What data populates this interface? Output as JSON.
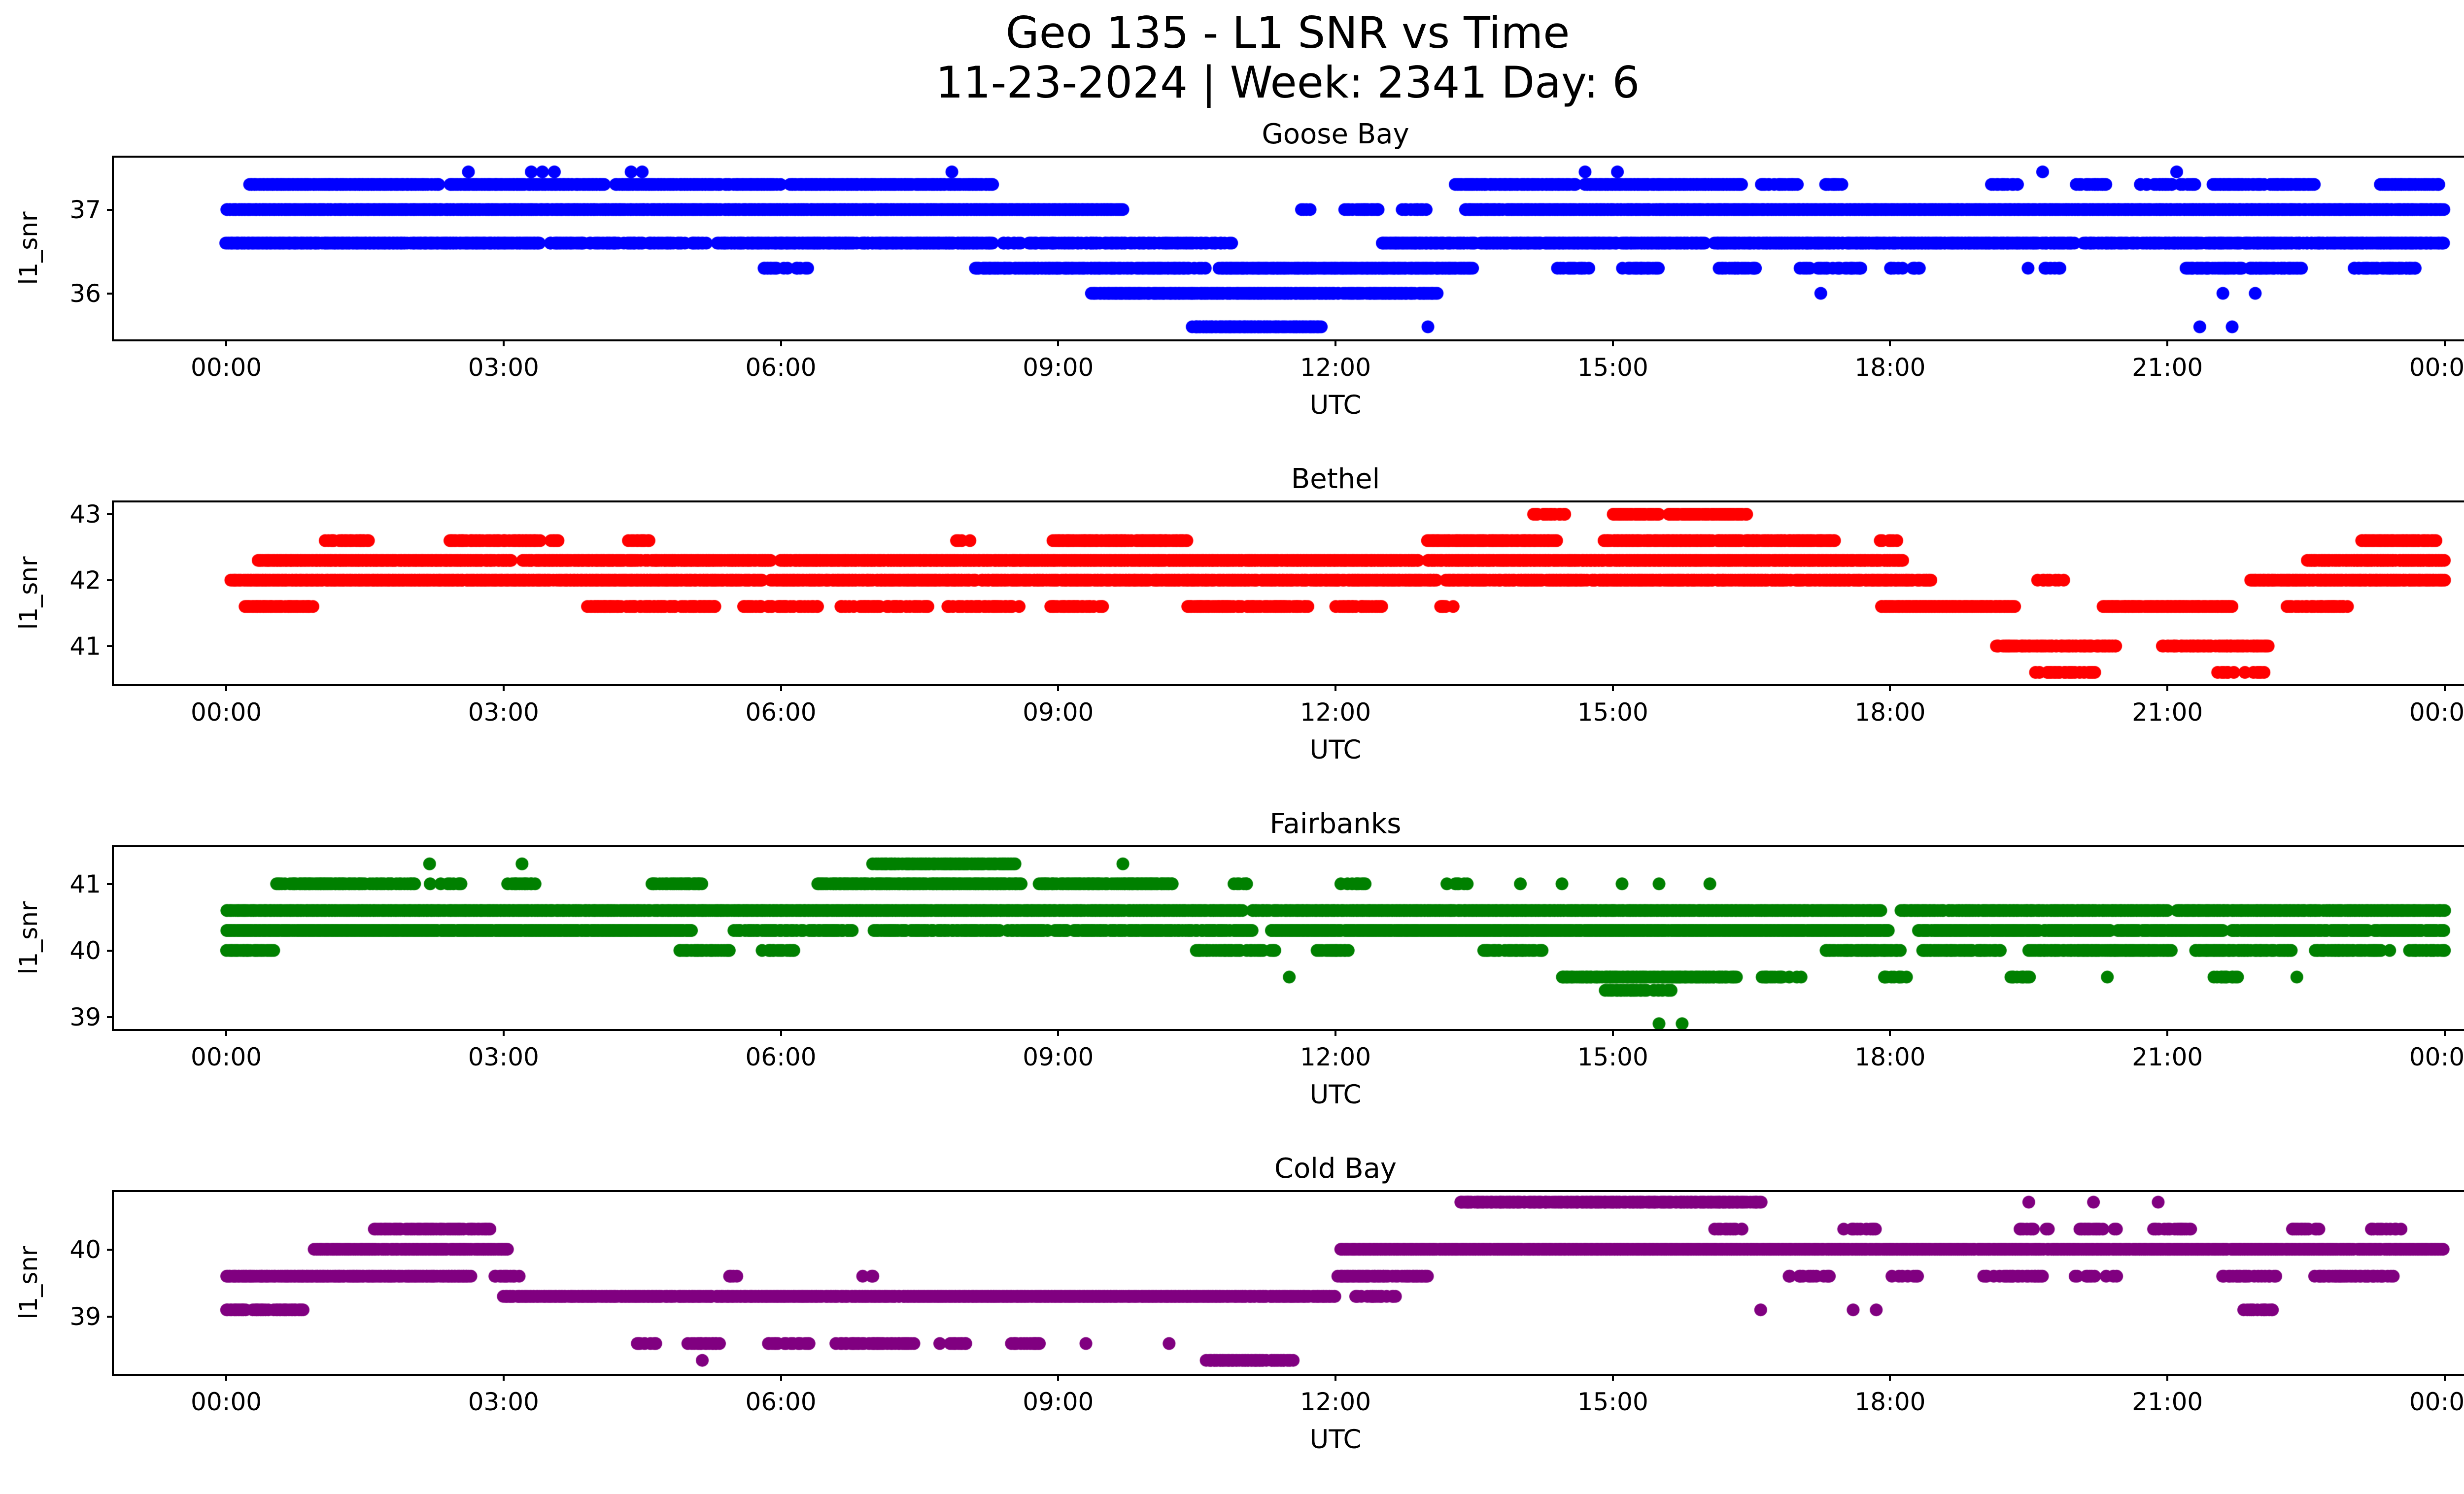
{
  "figure": {
    "title": "Geo 135 - L1 SNR vs Time",
    "subtitle": "11-23-2024 | Week: 2341 Day: 6"
  },
  "chart_data": [
    {
      "type": "scatter",
      "title": "Goose Bay",
      "color": "#0000ff",
      "ylabel": "l1_snr",
      "xlabel": "UTC",
      "x_ticks": [
        "00:00",
        "03:00",
        "06:00",
        "09:00",
        "12:00",
        "15:00",
        "18:00",
        "21:00",
        "00:00"
      ],
      "x_hours": [
        0,
        24
      ],
      "y_ticks": [
        36,
        37
      ],
      "ylim": [
        35.45,
        37.62
      ],
      "segments": [
        [
          2.62,
          2.62,
          37.45,
          1
        ],
        [
          3.3,
          3.3,
          37.45,
          1
        ],
        [
          3.42,
          3.42,
          37.45,
          1
        ],
        [
          3.55,
          3.55,
          37.45,
          1
        ],
        [
          4.38,
          4.38,
          37.45,
          1
        ],
        [
          4.5,
          4.5,
          37.45,
          1
        ],
        [
          7.85,
          7.85,
          37.45,
          1
        ],
        [
          14.7,
          14.7,
          37.45,
          1
        ],
        [
          15.05,
          15.05,
          37.45,
          1
        ],
        [
          19.65,
          19.65,
          37.45,
          1
        ],
        [
          21.1,
          21.1,
          37.45,
          1
        ],
        [
          0.25,
          2.3,
          37.3,
          0.95
        ],
        [
          2.4,
          4.1,
          37.3,
          0.9
        ],
        [
          4.2,
          6.0,
          37.3,
          0.85
        ],
        [
          6.1,
          8.3,
          37.3,
          0.9
        ],
        [
          13.3,
          14.6,
          37.3,
          0.9
        ],
        [
          14.7,
          16.4,
          37.3,
          0.95
        ],
        [
          16.6,
          17.0,
          37.3,
          0.7
        ],
        [
          17.3,
          17.5,
          37.3,
          0.6
        ],
        [
          19.1,
          19.4,
          37.3,
          0.6
        ],
        [
          20.0,
          20.35,
          37.3,
          0.6
        ],
        [
          20.7,
          21.3,
          37.3,
          0.7
        ],
        [
          21.5,
          22.6,
          37.3,
          0.85
        ],
        [
          23.3,
          23.95,
          37.3,
          0.8
        ],
        [
          0.0,
          9.7,
          37.0,
          0.97
        ],
        [
          11.6,
          11.75,
          37.0,
          0.5
        ],
        [
          12.1,
          12.5,
          37.0,
          0.7
        ],
        [
          12.7,
          13.0,
          37.0,
          0.6
        ],
        [
          13.4,
          24.0,
          37.0,
          0.97
        ],
        [
          0.0,
          3.4,
          36.6,
          0.97
        ],
        [
          3.5,
          5.2,
          36.6,
          0.8
        ],
        [
          5.3,
          8.3,
          36.6,
          0.9
        ],
        [
          8.4,
          10.9,
          36.6,
          0.6
        ],
        [
          12.5,
          16.0,
          36.6,
          0.9
        ],
        [
          16.1,
          20.0,
          36.6,
          0.95
        ],
        [
          20.1,
          24.0,
          36.6,
          0.9
        ],
        [
          5.8,
          6.3,
          36.3,
          0.5
        ],
        [
          8.1,
          10.6,
          36.3,
          0.85
        ],
        [
          10.7,
          13.5,
          36.3,
          0.9
        ],
        [
          14.4,
          14.75,
          36.3,
          0.6
        ],
        [
          15.1,
          15.5,
          36.3,
          0.6
        ],
        [
          16.15,
          16.55,
          36.3,
          0.6
        ],
        [
          17.0,
          17.7,
          36.3,
          0.6
        ],
        [
          18.0,
          18.35,
          36.3,
          0.5
        ],
        [
          19.5,
          19.85,
          36.3,
          0.5
        ],
        [
          21.2,
          22.45,
          36.3,
          0.75
        ],
        [
          23.0,
          23.7,
          36.3,
          0.7
        ],
        [
          9.35,
          13.1,
          36.0,
          0.9
        ],
        [
          17.25,
          17.25,
          36.0,
          1
        ],
        [
          21.6,
          21.6,
          36.0,
          1
        ],
        [
          21.95,
          21.95,
          36.0,
          1
        ],
        [
          10.45,
          11.85,
          35.6,
          0.9
        ],
        [
          13.0,
          13.0,
          35.6,
          1
        ],
        [
          21.35,
          21.35,
          35.6,
          1
        ],
        [
          21.7,
          21.7,
          35.6,
          1
        ]
      ]
    },
    {
      "type": "scatter",
      "title": "Bethel",
      "color": "#ff0000",
      "ylabel": "l1_snr",
      "xlabel": "UTC",
      "x_ticks": [
        "00:00",
        "03:00",
        "06:00",
        "09:00",
        "12:00",
        "15:00",
        "18:00",
        "21:00",
        "00:00"
      ],
      "x_hours": [
        0,
        24
      ],
      "y_ticks": [
        41,
        42,
        43
      ],
      "ylim": [
        40.42,
        43.18
      ],
      "segments": [
        [
          14.15,
          14.5,
          43.0,
          0.7
        ],
        [
          15.0,
          15.5,
          43.0,
          0.85
        ],
        [
          15.6,
          16.45,
          43.0,
          0.9
        ],
        [
          1.05,
          1.55,
          42.6,
          0.7
        ],
        [
          2.4,
          3.4,
          42.6,
          0.8
        ],
        [
          3.45,
          3.6,
          42.6,
          0.5
        ],
        [
          4.35,
          4.6,
          42.6,
          0.6
        ],
        [
          7.9,
          8.05,
          42.6,
          0.5
        ],
        [
          8.95,
          10.4,
          42.6,
          0.9
        ],
        [
          13.0,
          14.4,
          42.6,
          0.9
        ],
        [
          14.9,
          17.4,
          42.6,
          0.92
        ],
        [
          17.9,
          18.1,
          42.6,
          0.5
        ],
        [
          23.1,
          23.9,
          42.6,
          0.8
        ],
        [
          0.35,
          3.1,
          42.3,
          0.95
        ],
        [
          3.2,
          5.9,
          42.3,
          0.9
        ],
        [
          6.0,
          12.9,
          42.3,
          0.96
        ],
        [
          13.0,
          18.15,
          42.3,
          0.96
        ],
        [
          22.5,
          24.0,
          42.3,
          0.9
        ],
        [
          0.05,
          5.8,
          42.0,
          0.95
        ],
        [
          5.9,
          13.1,
          42.0,
          0.9
        ],
        [
          13.2,
          18.45,
          42.0,
          0.9
        ],
        [
          19.6,
          19.9,
          42.0,
          0.5
        ],
        [
          21.9,
          24.0,
          42.0,
          0.92
        ],
        [
          0.2,
          0.95,
          41.6,
          0.8
        ],
        [
          3.9,
          5.3,
          41.6,
          0.75
        ],
        [
          5.6,
          6.4,
          41.6,
          0.6
        ],
        [
          6.6,
          7.6,
          41.6,
          0.6
        ],
        [
          7.8,
          8.6,
          41.6,
          0.6
        ],
        [
          8.9,
          9.5,
          41.6,
          0.6
        ],
        [
          10.4,
          11.7,
          41.6,
          0.7
        ],
        [
          12.0,
          12.5,
          41.6,
          0.6
        ],
        [
          13.05,
          13.3,
          41.6,
          0.5
        ],
        [
          17.9,
          19.35,
          41.6,
          0.9
        ],
        [
          20.3,
          21.7,
          41.6,
          0.9
        ],
        [
          22.3,
          22.95,
          41.6,
          0.7
        ],
        [
          19.15,
          20.45,
          41.0,
          0.9
        ],
        [
          20.95,
          22.1,
          41.0,
          0.9
        ],
        [
          19.55,
          20.25,
          40.6,
          0.5
        ],
        [
          21.5,
          22.05,
          40.6,
          0.5
        ]
      ]
    },
    {
      "type": "scatter",
      "title": "Fairbanks",
      "color": "#008000",
      "ylabel": "l1_snr",
      "xlabel": "UTC",
      "x_ticks": [
        "00:00",
        "03:00",
        "06:00",
        "09:00",
        "12:00",
        "15:00",
        "18:00",
        "21:00",
        "00:00"
      ],
      "x_hours": [
        0,
        24
      ],
      "y_ticks": [
        39,
        40,
        41
      ],
      "ylim": [
        38.82,
        41.55
      ],
      "segments": [
        [
          2.2,
          2.2,
          41.3,
          1
        ],
        [
          3.2,
          3.2,
          41.3,
          1
        ],
        [
          7.0,
          8.55,
          41.3,
          0.9
        ],
        [
          9.7,
          9.7,
          41.3,
          1
        ],
        [
          0.55,
          2.05,
          41.0,
          0.85
        ],
        [
          2.2,
          2.55,
          41.0,
          0.6
        ],
        [
          3.0,
          3.35,
          41.0,
          0.6
        ],
        [
          4.6,
          5.15,
          41.0,
          0.7
        ],
        [
          6.4,
          8.6,
          41.0,
          0.9
        ],
        [
          8.8,
          10.25,
          41.0,
          0.85
        ],
        [
          10.9,
          11.05,
          41.0,
          0.4
        ],
        [
          12.0,
          12.35,
          41.0,
          0.5
        ],
        [
          13.2,
          13.45,
          41.0,
          0.5
        ],
        [
          14.0,
          14.0,
          41.0,
          1
        ],
        [
          14.45,
          14.45,
          41.0,
          1
        ],
        [
          15.1,
          15.1,
          41.0,
          1
        ],
        [
          15.5,
          15.5,
          41.0,
          1
        ],
        [
          16.05,
          16.05,
          41.0,
          1
        ],
        [
          0.0,
          11.0,
          40.6,
          0.95
        ],
        [
          11.1,
          17.9,
          40.6,
          0.95
        ],
        [
          18.1,
          21.0,
          40.6,
          0.9
        ],
        [
          21.1,
          24.0,
          40.6,
          0.93
        ],
        [
          0.0,
          5.05,
          40.3,
          0.95
        ],
        [
          5.5,
          6.8,
          40.3,
          0.6
        ],
        [
          7.0,
          11.1,
          40.3,
          0.7
        ],
        [
          11.3,
          18.0,
          40.3,
          0.95
        ],
        [
          18.3,
          21.6,
          40.3,
          0.9
        ],
        [
          21.7,
          24.0,
          40.3,
          0.9
        ],
        [
          0.0,
          0.55,
          40.0,
          0.8
        ],
        [
          4.9,
          5.45,
          40.0,
          0.7
        ],
        [
          5.8,
          6.15,
          40.0,
          0.6
        ],
        [
          10.5,
          11.35,
          40.0,
          0.7
        ],
        [
          11.8,
          12.15,
          40.0,
          0.6
        ],
        [
          13.6,
          14.25,
          40.0,
          0.6
        ],
        [
          17.3,
          18.15,
          40.0,
          0.7
        ],
        [
          18.35,
          19.2,
          40.0,
          0.7
        ],
        [
          19.5,
          21.05,
          40.0,
          0.8
        ],
        [
          21.3,
          22.35,
          40.0,
          0.75
        ],
        [
          22.6,
          23.4,
          40.0,
          0.7
        ],
        [
          23.6,
          24.0,
          40.0,
          0.7
        ],
        [
          11.5,
          11.5,
          39.6,
          1
        ],
        [
          14.45,
          16.35,
          39.6,
          0.9
        ],
        [
          16.6,
          17.05,
          39.6,
          0.6
        ],
        [
          17.9,
          18.2,
          39.6,
          0.5
        ],
        [
          19.3,
          19.55,
          39.6,
          0.5
        ],
        [
          20.35,
          20.35,
          39.6,
          1
        ],
        [
          21.5,
          21.85,
          39.6,
          0.5
        ],
        [
          22.4,
          22.4,
          39.6,
          1
        ],
        [
          14.9,
          15.7,
          39.4,
          0.5
        ],
        [
          15.5,
          15.5,
          38.9,
          1
        ],
        [
          15.75,
          15.75,
          38.9,
          1
        ]
      ]
    },
    {
      "type": "scatter",
      "title": "Cold Bay",
      "color": "#800080",
      "ylabel": "l1_snr",
      "xlabel": "UTC",
      "x_ticks": [
        "00:00",
        "03:00",
        "06:00",
        "09:00",
        "12:00",
        "15:00",
        "18:00",
        "21:00",
        "00:00"
      ],
      "x_hours": [
        0,
        24
      ],
      "y_ticks": [
        39,
        40
      ],
      "ylim": [
        38.15,
        40.85
      ],
      "segments": [
        [
          13.35,
          16.6,
          40.7,
          0.93
        ],
        [
          19.5,
          19.5,
          40.7,
          1
        ],
        [
          20.2,
          20.2,
          40.7,
          1
        ],
        [
          20.9,
          20.9,
          40.7,
          1
        ],
        [
          1.6,
          2.85,
          40.3,
          0.8
        ],
        [
          16.1,
          16.45,
          40.3,
          0.5
        ],
        [
          17.5,
          17.85,
          40.3,
          0.5
        ],
        [
          19.4,
          19.75,
          40.3,
          0.5
        ],
        [
          20.05,
          20.45,
          40.3,
          0.5
        ],
        [
          20.85,
          21.25,
          40.3,
          0.5
        ],
        [
          22.3,
          22.65,
          40.3,
          0.5
        ],
        [
          23.2,
          23.55,
          40.3,
          0.5
        ],
        [
          0.95,
          3.05,
          40.0,
          0.9
        ],
        [
          12.05,
          24.0,
          40.0,
          0.96
        ],
        [
          0.0,
          2.65,
          39.6,
          0.92
        ],
        [
          2.9,
          3.2,
          39.6,
          0.6
        ],
        [
          5.45,
          5.6,
          39.6,
          0.4
        ],
        [
          6.85,
          7.05,
          39.6,
          0.4
        ],
        [
          12.0,
          13.0,
          39.6,
          0.8
        ],
        [
          16.9,
          17.35,
          39.6,
          0.5
        ],
        [
          18.0,
          18.35,
          39.6,
          0.5
        ],
        [
          19.0,
          19.65,
          39.6,
          0.6
        ],
        [
          20.0,
          20.45,
          39.6,
          0.5
        ],
        [
          21.6,
          22.2,
          39.6,
          0.5
        ],
        [
          22.6,
          23.45,
          39.6,
          0.6
        ],
        [
          3.0,
          12.0,
          39.3,
          0.95
        ],
        [
          12.2,
          12.65,
          39.3,
          0.6
        ],
        [
          0.0,
          0.85,
          39.1,
          0.85
        ],
        [
          16.6,
          16.6,
          39.1,
          1
        ],
        [
          17.6,
          17.6,
          39.1,
          1
        ],
        [
          17.85,
          17.85,
          39.1,
          1
        ],
        [
          21.8,
          22.15,
          39.1,
          0.5
        ],
        [
          4.4,
          4.65,
          38.6,
          0.5
        ],
        [
          5.0,
          5.35,
          38.6,
          0.5
        ],
        [
          5.8,
          6.35,
          38.6,
          0.6
        ],
        [
          6.6,
          7.45,
          38.6,
          0.6
        ],
        [
          7.7,
          8.05,
          38.6,
          0.5
        ],
        [
          8.5,
          8.85,
          38.6,
          0.5
        ],
        [
          9.3,
          9.3,
          38.6,
          1
        ],
        [
          10.2,
          10.2,
          38.6,
          1
        ],
        [
          10.6,
          11.55,
          38.35,
          0.85
        ],
        [
          5.15,
          5.15,
          38.35,
          1
        ]
      ]
    }
  ]
}
